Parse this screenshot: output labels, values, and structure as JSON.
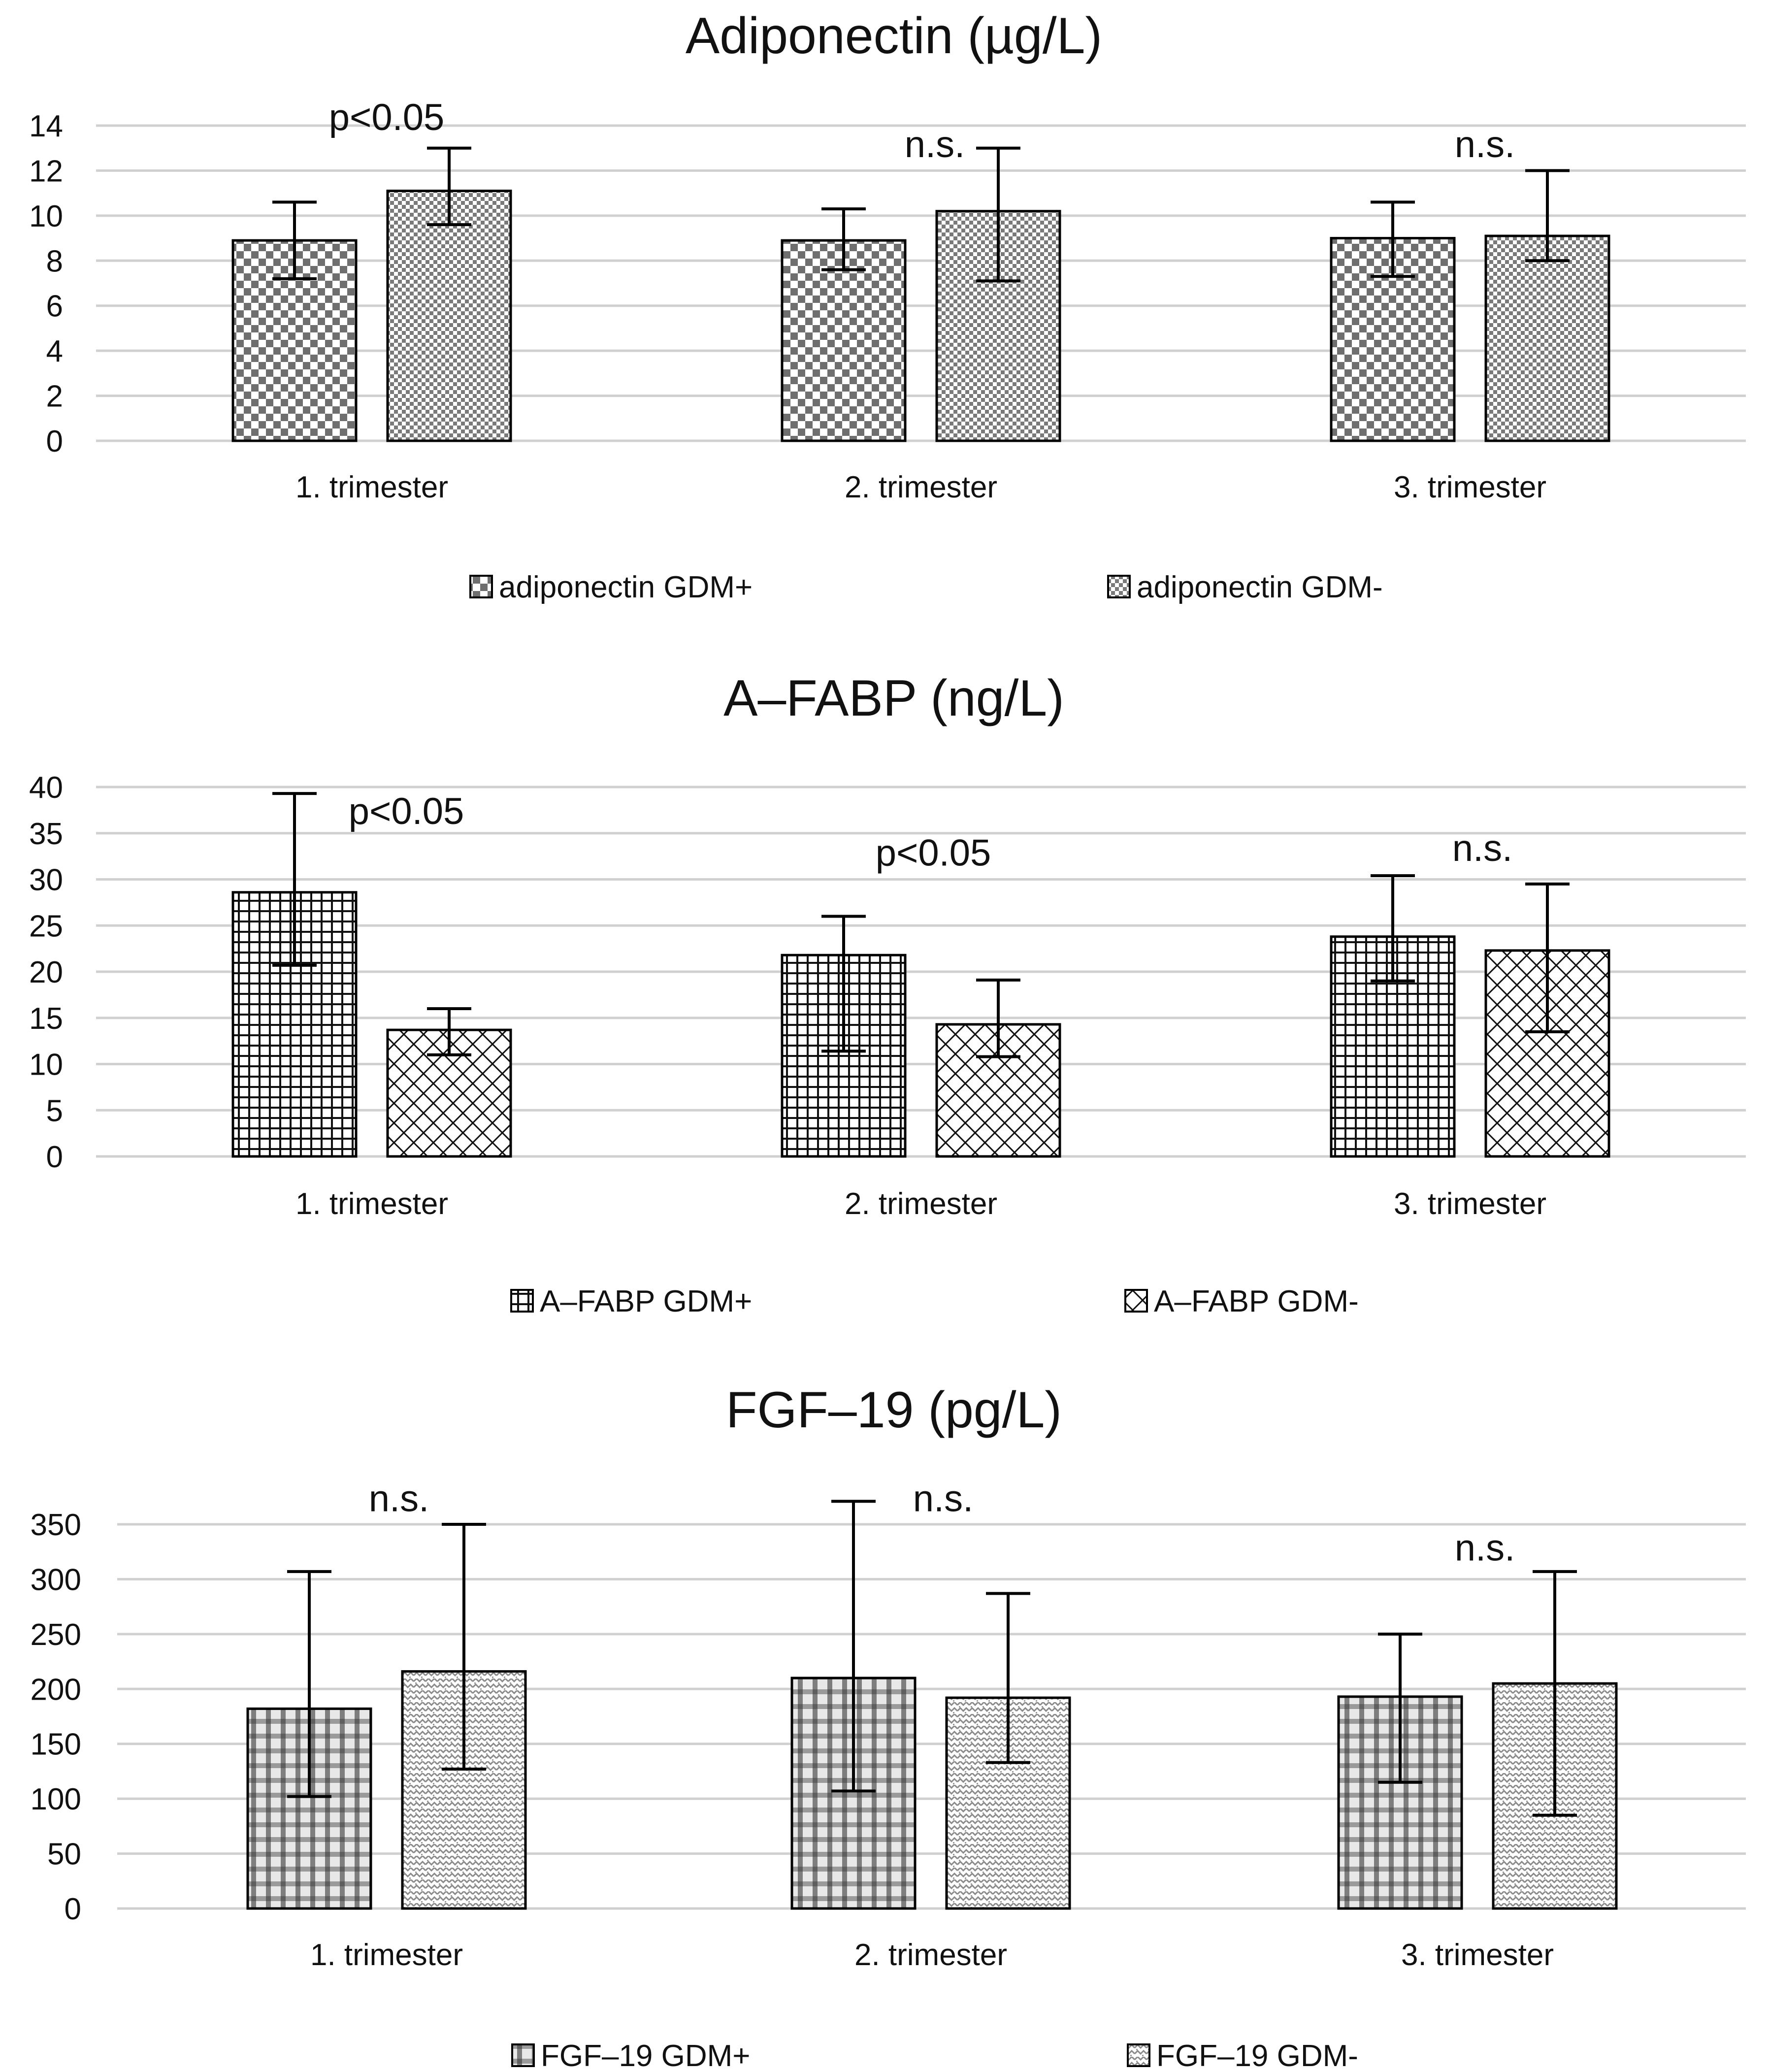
{
  "chart_data": [
    {
      "type": "bar",
      "title": "Adiponectin (µg/L)",
      "categories": [
        "1. trimester",
        "2. trimester",
        "3. trimester"
      ],
      "ylim": [
        0,
        14
      ],
      "yticks": [
        0,
        2,
        4,
        6,
        8,
        10,
        12,
        14
      ],
      "series": [
        {
          "name": "adiponectin GDM+",
          "pattern": "checker",
          "values": [
            8.9,
            8.9,
            9.0
          ],
          "err_low": [
            7.2,
            7.6,
            7.3
          ],
          "err_high": [
            10.6,
            10.3,
            10.6
          ]
        },
        {
          "name": "adiponectin GDM-",
          "pattern": "finechecker",
          "values": [
            11.1,
            10.2,
            9.1
          ],
          "err_low": [
            9.6,
            7.1,
            8.0
          ],
          "err_high": [
            13.0,
            13.0,
            12.0
          ]
        }
      ],
      "annotations": [
        "p<0.05",
        "n.s.",
        "n.s."
      ],
      "annotation_y": [
        13.8,
        12.6,
        12.6
      ]
    },
    {
      "type": "bar",
      "title": "A–FABP (ng/L)",
      "categories": [
        "1. trimester",
        "2. trimester",
        "3. trimester"
      ],
      "ylim": [
        0,
        40
      ],
      "yticks": [
        0,
        5,
        10,
        15,
        20,
        25,
        30,
        35,
        40
      ],
      "series": [
        {
          "name": "A–FABP GDM+",
          "pattern": "grid",
          "values": [
            28.6,
            21.8,
            23.8
          ],
          "err_low": [
            20.7,
            11.4,
            19.0
          ],
          "err_high": [
            39.3,
            26.0,
            30.4
          ]
        },
        {
          "name": "A–FABP GDM-",
          "pattern": "cross",
          "values": [
            13.7,
            14.3,
            22.3
          ],
          "err_low": [
            11.0,
            10.8,
            13.5
          ],
          "err_high": [
            16.0,
            19.1,
            29.5
          ]
        }
      ],
      "annotations": [
        "p<0.05",
        "p<0.05",
        "n.s."
      ],
      "annotation_y": [
        36.0,
        31.5,
        32.0
      ]
    },
    {
      "type": "bar",
      "title": "FGF–19 (pg/L)",
      "categories": [
        "1. trimester",
        "2. trimester",
        "3. trimester"
      ],
      "ylim": [
        0,
        350
      ],
      "yticks": [
        0,
        50,
        100,
        150,
        200,
        250,
        300,
        350
      ],
      "series": [
        {
          "name": "FGF–19 GDM+",
          "pattern": "plaid",
          "values": [
            182,
            210,
            193
          ],
          "err_low": [
            102,
            107,
            115
          ],
          "err_high": [
            307,
            371,
            250
          ]
        },
        {
          "name": "FGF–19 GDM-",
          "pattern": "weave",
          "values": [
            216,
            192,
            205
          ],
          "err_low": [
            127,
            133,
            85
          ],
          "err_high": [
            350,
            287,
            307
          ]
        }
      ],
      "annotations": [
        "n.s.",
        "n.s.",
        "n.s."
      ],
      "annotation_y": [
        362,
        362,
        317
      ]
    }
  ]
}
